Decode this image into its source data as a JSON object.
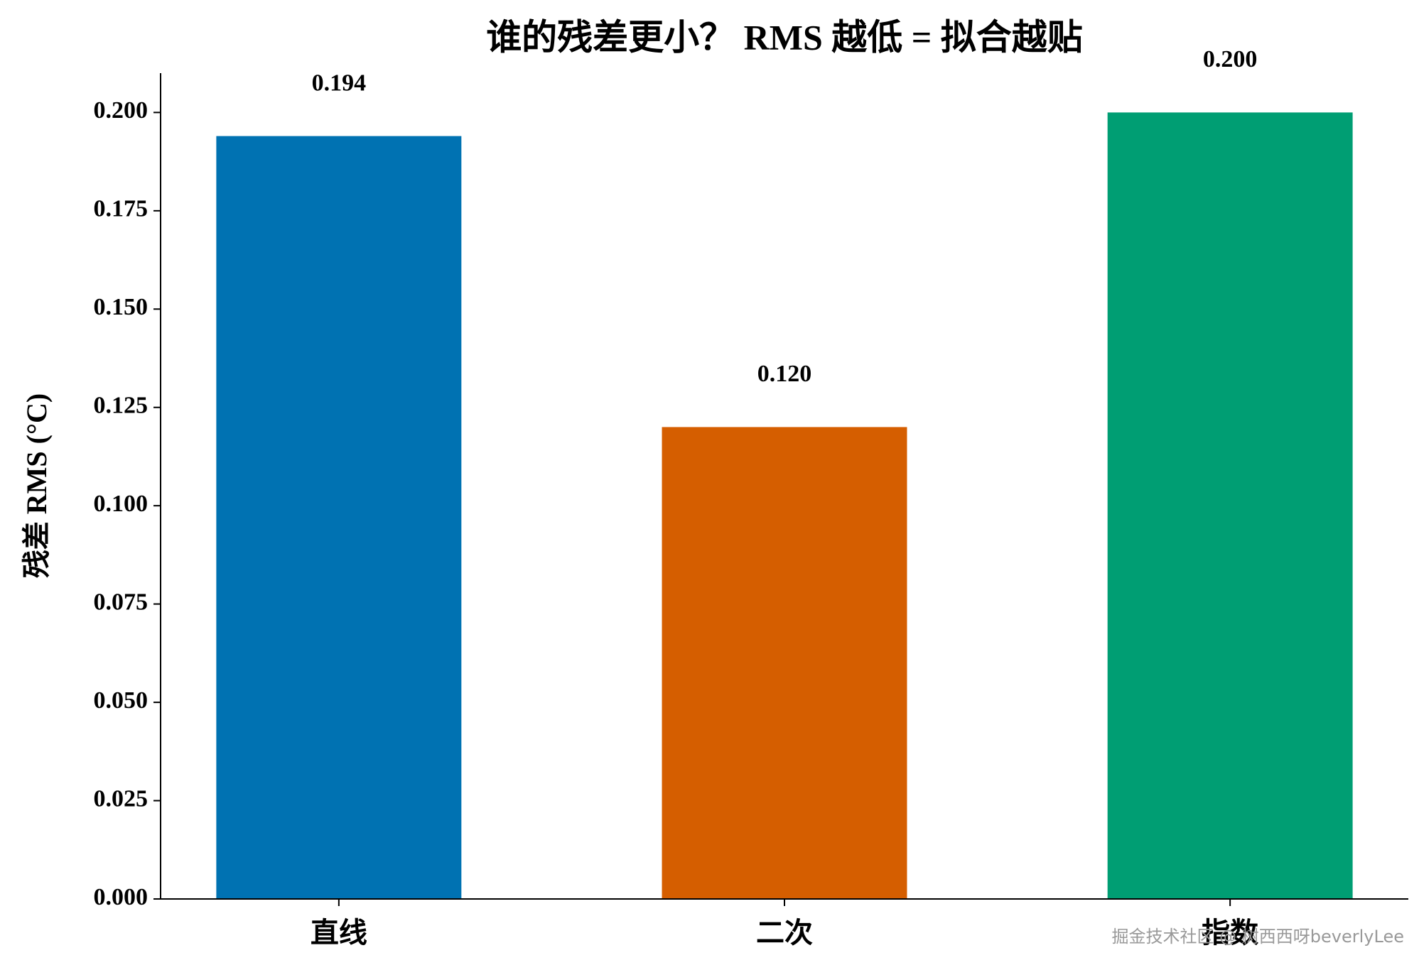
{
  "chart_data": {
    "type": "bar",
    "title": "谁的残差更小？ RMS 越低 = 拟合越贴",
    "y_label": "残差 RMS (°C)",
    "categories": [
      "直线",
      "二次",
      "指数"
    ],
    "values": [
      0.194,
      0.12,
      0.2
    ],
    "value_labels": [
      "0.194",
      "0.120",
      "0.200"
    ],
    "colors": [
      "#0072b2",
      "#d55e00",
      "#009e73"
    ],
    "ylim": [
      0,
      0.21
    ],
    "yticks": [
      {
        "value": 0,
        "label": "0.000"
      },
      0.025,
      {
        "value": 0.05,
        "label": "0.050"
      },
      0.075,
      {
        "value": 0.1,
        "label": "0.100"
      },
      0.125,
      {
        "value": 0.15,
        "label": "0.150"
      },
      0.175,
      {
        "value": 0.2,
        "label": "0.200"
      }
    ],
    "grid": false,
    "watermark": "掘金技术社区 @ 树西西呀beverlyLee"
  }
}
